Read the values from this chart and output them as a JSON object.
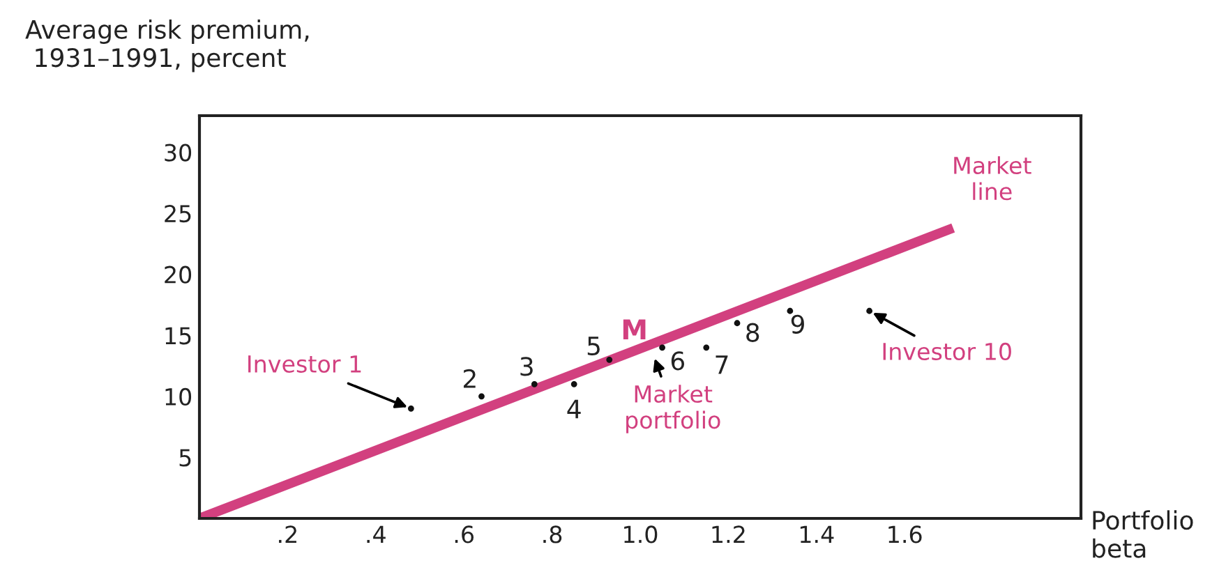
{
  "chart_data": {
    "type": "scatter",
    "xlabel": "Portfolio\nbeta",
    "ylabel": "Average risk premium,\n 1931–1991, percent",
    "xlim": [
      0,
      2.0
    ],
    "ylim": [
      0,
      33
    ],
    "xticks": [
      {
        "value": 0.2,
        "label": ".2"
      },
      {
        "value": 0.4,
        "label": ".4"
      },
      {
        "value": 0.6,
        "label": ".6"
      },
      {
        "value": 0.8,
        "label": ".8"
      },
      {
        "value": 1.0,
        "label": "1.0"
      },
      {
        "value": 1.2,
        "label": "1.2"
      },
      {
        "value": 1.4,
        "label": "1.4"
      },
      {
        "value": 1.6,
        "label": "1.6"
      }
    ],
    "yticks": [
      5,
      10,
      15,
      20,
      25,
      30
    ],
    "grid": false,
    "legend": false,
    "series": [
      {
        "type": "line",
        "color": "#d2407f",
        "x": [
          0,
          1.71
        ],
        "values": [
          0,
          23.8
        ]
      },
      {
        "color": "#111111",
        "marker": "circle",
        "x": [
          0.48,
          0.64,
          0.76,
          0.85,
          0.93,
          1.05,
          1.15,
          1.22,
          1.34,
          1.52
        ],
        "values": [
          9,
          10,
          11,
          11,
          13,
          14,
          14,
          16,
          17,
          17
        ]
      }
    ],
    "annotations": [
      {
        "text": "Investor 1",
        "x": 0.48,
        "y": 9
      },
      {
        "text": "M",
        "x": 1.0,
        "y": 13.9
      },
      {
        "text": "Market\nportfolio",
        "x": 1.03,
        "y": 13.4
      },
      {
        "text": "Investor 10",
        "x": 1.52,
        "y": 17
      },
      {
        "text": "Market\nline",
        "x": 1.71,
        "y": 23.8
      },
      {
        "text": "2",
        "x": 0.64,
        "y": 10
      },
      {
        "text": "3",
        "x": 0.76,
        "y": 11
      },
      {
        "text": "4",
        "x": 0.85,
        "y": 11
      },
      {
        "text": "5",
        "x": 0.93,
        "y": 13
      },
      {
        "text": "6",
        "x": 1.05,
        "y": 14
      },
      {
        "text": "7",
        "x": 1.15,
        "y": 14
      },
      {
        "text": "8",
        "x": 1.22,
        "y": 16
      },
      {
        "text": "9",
        "x": 1.34,
        "y": 17
      }
    ]
  }
}
